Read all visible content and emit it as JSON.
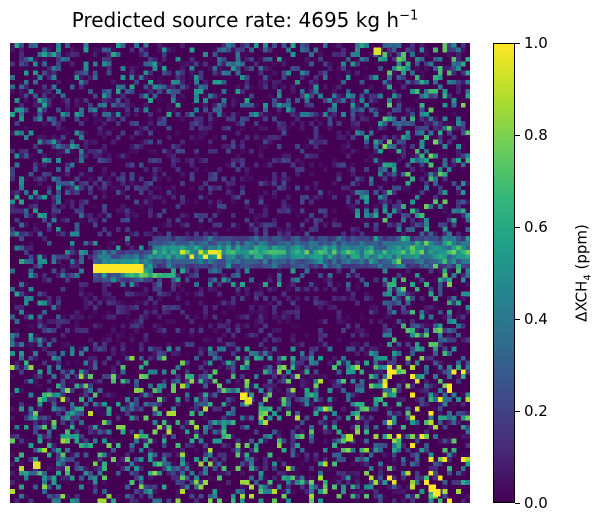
{
  "chart_data": {
    "type": "heatmap",
    "title": "Predicted source rate: 4695 kg h",
    "title_superscript": "−1",
    "colormap": "viridis",
    "colorbar": {
      "label": "ΔXCH",
      "label_subscript": "4",
      "label_unit": " (ppm)",
      "range": [
        0.0,
        1.0
      ],
      "ticks": [
        "0.0",
        "0.2",
        "0.4",
        "0.6",
        "0.8",
        "1.0"
      ]
    },
    "plume": "horizontal enhancement band across the middle of the scene, saturated at its left end",
    "axes_visible": false
  }
}
